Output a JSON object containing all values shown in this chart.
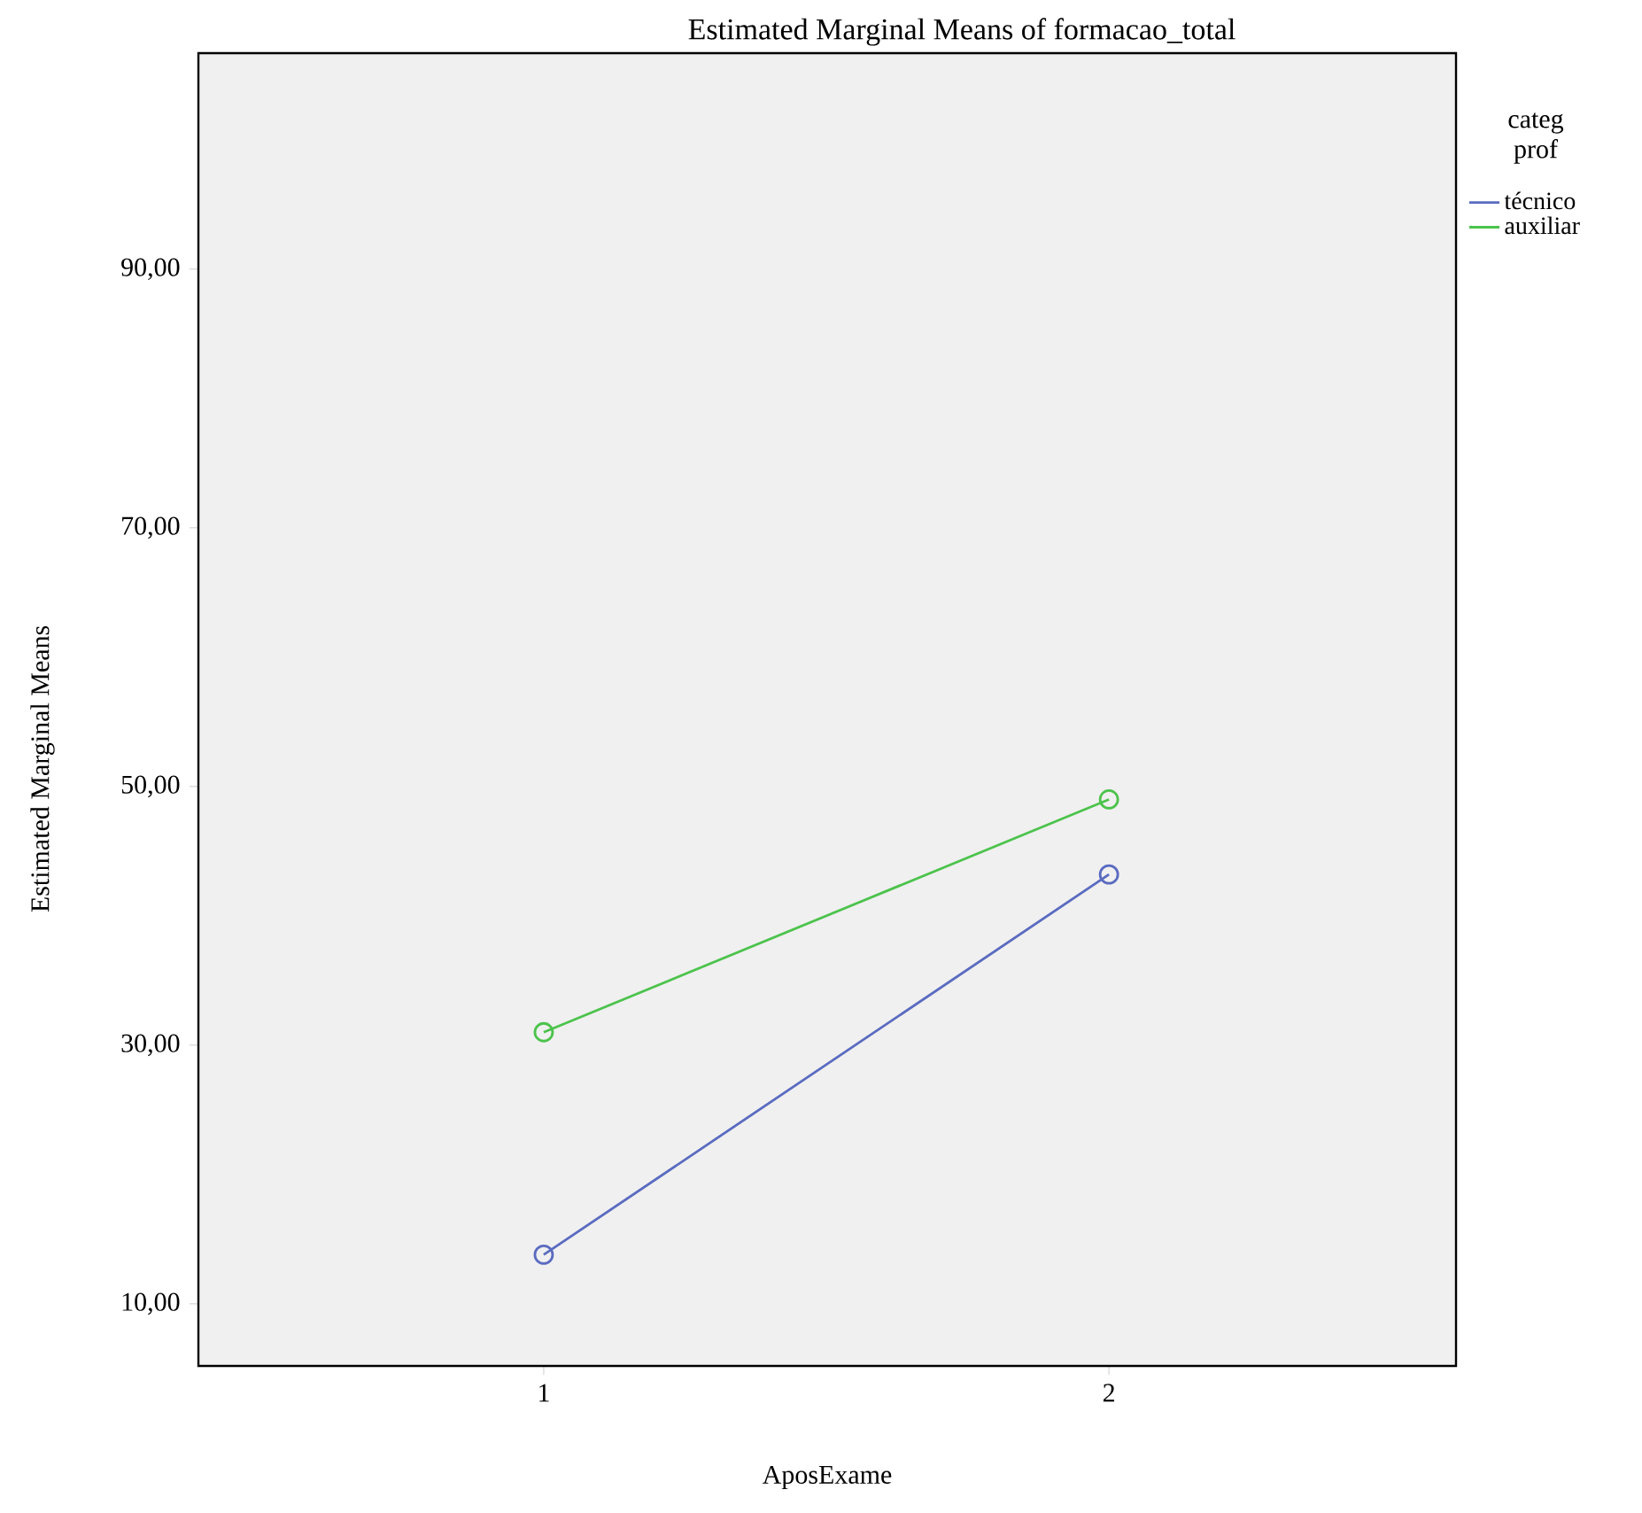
{
  "chart_data": {
    "type": "line",
    "title": "Estimated Marginal Means of formacao_total",
    "xlabel": "AposExame",
    "ylabel": "Estimated Marginal Means",
    "legend_title": "categ prof",
    "categories": [
      "1",
      "2"
    ],
    "series": [
      {
        "name": "técnico",
        "color": "#5a6bc0",
        "values": [
          13.8,
          43.2
        ]
      },
      {
        "name": "auxiliar",
        "color": "#4cc34c",
        "values": [
          31.0,
          49.0
        ]
      }
    ],
    "ylim": [
      5.2,
      106.7
    ],
    "yticks": [
      {
        "value": 10,
        "label": "10,00"
      },
      {
        "value": 30,
        "label": "30,00"
      },
      {
        "value": 50,
        "label": "50,00"
      },
      {
        "value": 70,
        "label": "70,00"
      },
      {
        "value": 90,
        "label": "90,00"
      }
    ],
    "grid": false,
    "legend": "top right",
    "marker": "circle",
    "line_style": "solid"
  }
}
